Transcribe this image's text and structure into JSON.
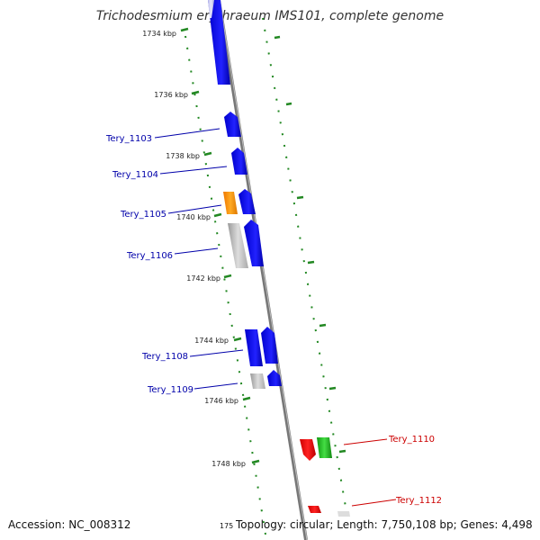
{
  "title": "Trichodesmium erythraeum IMS101, complete genome",
  "footer": {
    "accession": "Accession: NC_008312",
    "topology": "Topology: circular; Length: 7,750,108 bp; Genes: 4,498",
    "cut_label": "175"
  },
  "ticks": [
    "1734 kbp",
    "1736 kbp",
    "1738 kbp",
    "1740 kbp",
    "1742 kbp",
    "1744 kbp",
    "1746 kbp",
    "1748 kbp"
  ],
  "genes": [
    {
      "label": "Tery_1103",
      "color": "#0000aa"
    },
    {
      "label": "Tery_1104",
      "color": "#0000aa"
    },
    {
      "label": "Tery_1105",
      "color": "#0000aa"
    },
    {
      "label": "Tery_1106",
      "color": "#0000aa"
    },
    {
      "label": "Tery_1108",
      "color": "#0000aa"
    },
    {
      "label": "Tery_1109",
      "color": "#0000aa"
    },
    {
      "label": "Tery_1110",
      "color": "#cc0000"
    },
    {
      "label": "Tery_1112",
      "color": "#cc0000"
    }
  ],
  "colors": {
    "cds": "#0000ee",
    "rna_orange": "#ff8c00",
    "gray": "#b0b0b0",
    "red": "#ee0000",
    "green": "#22bb22",
    "backbone": "#888888",
    "grid": "#228822"
  }
}
